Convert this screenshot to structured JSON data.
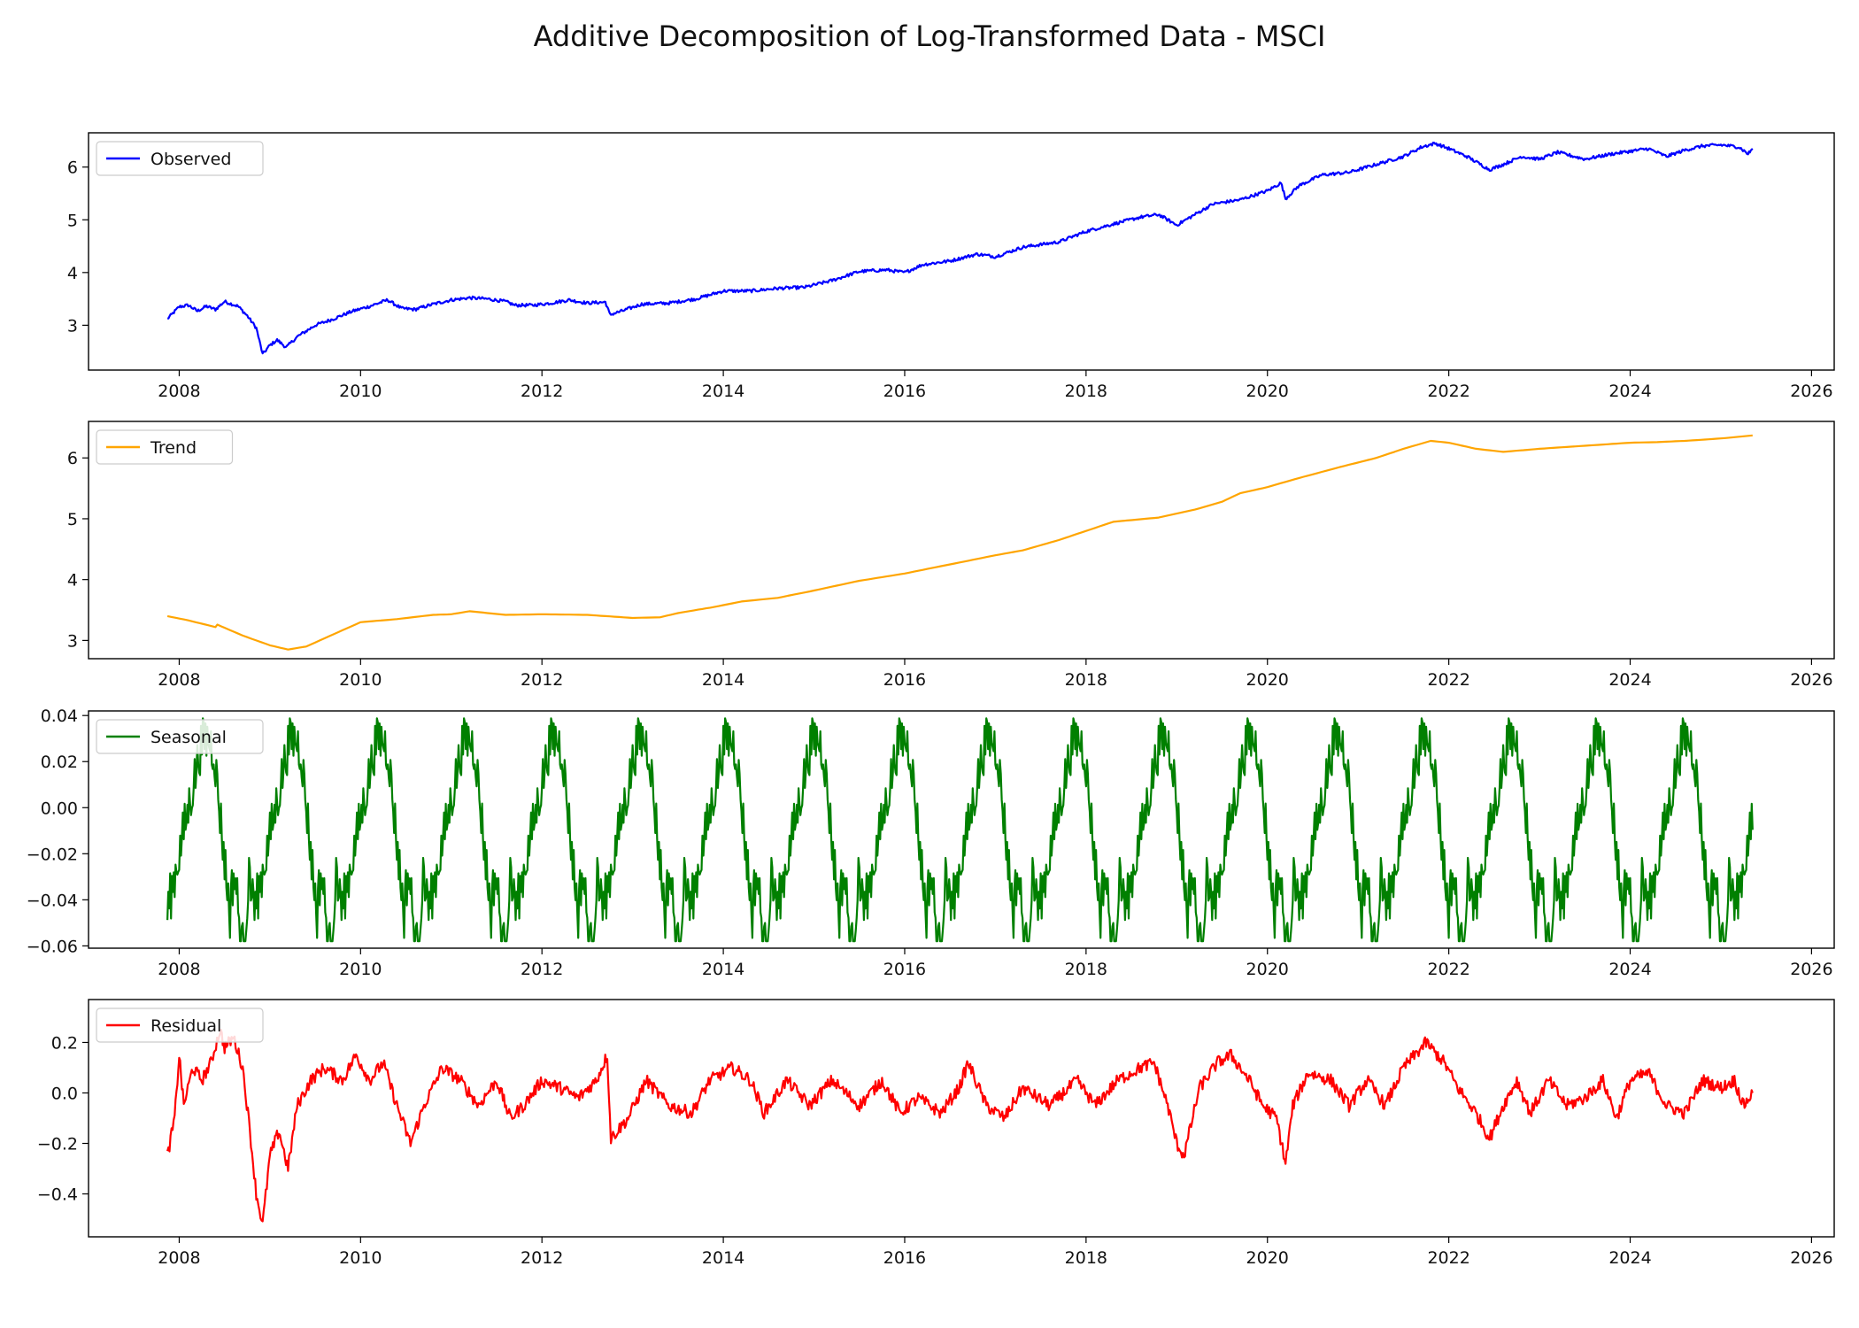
{
  "figure": {
    "title": "Additive Decomposition of Log-Transformed Data - MSCI"
  },
  "chart_data": [
    {
      "type": "line",
      "series": [
        {
          "name": "Observed",
          "color": "#0000ff"
        }
      ],
      "xlim": [
        2007.0,
        2026.25
      ],
      "ylim": [
        2.15,
        6.65
      ],
      "xticks": [
        2008,
        2010,
        2012,
        2014,
        2016,
        2018,
        2020,
        2022,
        2024,
        2026
      ],
      "xtick_labels": [
        "2008",
        "2010",
        "2012",
        "2014",
        "2016",
        "2018",
        "2020",
        "2022",
        "2024",
        "2026"
      ],
      "yticks": [
        3,
        4,
        5,
        6
      ],
      "ytick_labels": [
        "3",
        "4",
        "5",
        "6"
      ],
      "legend_position": "upper-left",
      "points": [
        [
          2007.87,
          3.12
        ],
        [
          2008.0,
          3.35
        ],
        [
          2008.1,
          3.38
        ],
        [
          2008.2,
          3.27
        ],
        [
          2008.3,
          3.36
        ],
        [
          2008.4,
          3.3
        ],
        [
          2008.5,
          3.45
        ],
        [
          2008.65,
          3.36
        ],
        [
          2008.75,
          3.18
        ],
        [
          2008.85,
          2.95
        ],
        [
          2008.92,
          2.45
        ],
        [
          2009.0,
          2.62
        ],
        [
          2009.08,
          2.72
        ],
        [
          2009.18,
          2.58
        ],
        [
          2009.3,
          2.78
        ],
        [
          2009.5,
          3.0
        ],
        [
          2009.7,
          3.12
        ],
        [
          2009.9,
          3.26
        ],
        [
          2010.1,
          3.36
        ],
        [
          2010.3,
          3.48
        ],
        [
          2010.45,
          3.32
        ],
        [
          2010.6,
          3.3
        ],
        [
          2010.8,
          3.4
        ],
        [
          2011.0,
          3.48
        ],
        [
          2011.2,
          3.52
        ],
        [
          2011.4,
          3.5
        ],
        [
          2011.6,
          3.45
        ],
        [
          2011.7,
          3.38
        ],
        [
          2011.9,
          3.38
        ],
        [
          2012.1,
          3.42
        ],
        [
          2012.3,
          3.48
        ],
        [
          2012.5,
          3.42
        ],
        [
          2012.7,
          3.44
        ],
        [
          2012.75,
          3.2
        ],
        [
          2012.9,
          3.28
        ],
        [
          2013.1,
          3.4
        ],
        [
          2013.4,
          3.42
        ],
        [
          2013.7,
          3.5
        ],
        [
          2014.0,
          3.65
        ],
        [
          2014.3,
          3.65
        ],
        [
          2014.6,
          3.7
        ],
        [
          2014.9,
          3.72
        ],
        [
          2015.2,
          3.85
        ],
        [
          2015.5,
          4.02
        ],
        [
          2015.8,
          4.05
        ],
        [
          2016.0,
          4.0
        ],
        [
          2016.2,
          4.15
        ],
        [
          2016.5,
          4.22
        ],
        [
          2016.8,
          4.35
        ],
        [
          2017.0,
          4.3
        ],
        [
          2017.3,
          4.48
        ],
        [
          2017.7,
          4.58
        ],
        [
          2018.0,
          4.78
        ],
        [
          2018.3,
          4.92
        ],
        [
          2018.6,
          5.05
        ],
        [
          2018.8,
          5.1
        ],
        [
          2019.0,
          4.9
        ],
        [
          2019.2,
          5.1
        ],
        [
          2019.4,
          5.3
        ],
        [
          2019.7,
          5.38
        ],
        [
          2020.0,
          5.55
        ],
        [
          2020.15,
          5.7
        ],
        [
          2020.2,
          5.4
        ],
        [
          2020.35,
          5.65
        ],
        [
          2020.6,
          5.85
        ],
        [
          2020.9,
          5.9
        ],
        [
          2021.2,
          6.05
        ],
        [
          2021.5,
          6.2
        ],
        [
          2021.7,
          6.38
        ],
        [
          2021.85,
          6.45
        ],
        [
          2022.0,
          6.35
        ],
        [
          2022.2,
          6.2
        ],
        [
          2022.45,
          5.95
        ],
        [
          2022.6,
          6.05
        ],
        [
          2022.8,
          6.2
        ],
        [
          2023.0,
          6.15
        ],
        [
          2023.2,
          6.28
        ],
        [
          2023.5,
          6.15
        ],
        [
          2023.8,
          6.25
        ],
        [
          2024.0,
          6.3
        ],
        [
          2024.2,
          6.35
        ],
        [
          2024.4,
          6.2
        ],
        [
          2024.6,
          6.32
        ],
        [
          2024.8,
          6.4
        ],
        [
          2025.0,
          6.42
        ],
        [
          2025.2,
          6.38
        ],
        [
          2025.3,
          6.25
        ],
        [
          2025.35,
          6.35
        ]
      ]
    },
    {
      "type": "line",
      "series": [
        {
          "name": "Trend",
          "color": "#ffa500"
        }
      ],
      "xlim": [
        2007.0,
        2026.25
      ],
      "ylim": [
        2.7,
        6.6
      ],
      "xticks": [
        2008,
        2010,
        2012,
        2014,
        2016,
        2018,
        2020,
        2022,
        2024,
        2026
      ],
      "xtick_labels": [
        "2008",
        "2010",
        "2012",
        "2014",
        "2016",
        "2018",
        "2020",
        "2022",
        "2024",
        "2026"
      ],
      "yticks": [
        3,
        4,
        5,
        6
      ],
      "ytick_labels": [
        "3",
        "4",
        "5",
        "6"
      ],
      "legend_position": "upper-left",
      "points": [
        [
          2007.87,
          3.4
        ],
        [
          2008.1,
          3.33
        ],
        [
          2008.4,
          3.22
        ],
        [
          2008.42,
          3.26
        ],
        [
          2008.7,
          3.08
        ],
        [
          2009.0,
          2.92
        ],
        [
          2009.2,
          2.85
        ],
        [
          2009.4,
          2.9
        ],
        [
          2009.7,
          3.1
        ],
        [
          2010.0,
          3.3
        ],
        [
          2010.4,
          3.35
        ],
        [
          2010.8,
          3.42
        ],
        [
          2011.0,
          3.43
        ],
        [
          2011.2,
          3.48
        ],
        [
          2011.6,
          3.42
        ],
        [
          2012.0,
          3.43
        ],
        [
          2012.5,
          3.42
        ],
        [
          2013.0,
          3.37
        ],
        [
          2013.3,
          3.38
        ],
        [
          2013.5,
          3.45
        ],
        [
          2013.9,
          3.55
        ],
        [
          2014.2,
          3.64
        ],
        [
          2014.6,
          3.7
        ],
        [
          2015.0,
          3.82
        ],
        [
          2015.5,
          3.98
        ],
        [
          2016.0,
          4.1
        ],
        [
          2016.5,
          4.25
        ],
        [
          2017.0,
          4.4
        ],
        [
          2017.3,
          4.48
        ],
        [
          2017.7,
          4.65
        ],
        [
          2018.0,
          4.8
        ],
        [
          2018.3,
          4.95
        ],
        [
          2018.8,
          5.02
        ],
        [
          2019.2,
          5.15
        ],
        [
          2019.5,
          5.28
        ],
        [
          2019.7,
          5.42
        ],
        [
          2020.0,
          5.52
        ],
        [
          2020.3,
          5.65
        ],
        [
          2020.8,
          5.85
        ],
        [
          2021.2,
          6.0
        ],
        [
          2021.5,
          6.15
        ],
        [
          2021.8,
          6.28
        ],
        [
          2022.0,
          6.25
        ],
        [
          2022.3,
          6.15
        ],
        [
          2022.6,
          6.1
        ],
        [
          2023.0,
          6.15
        ],
        [
          2023.5,
          6.2
        ],
        [
          2024.0,
          6.25
        ],
        [
          2024.3,
          6.26
        ],
        [
          2024.6,
          6.28
        ],
        [
          2025.0,
          6.32
        ],
        [
          2025.35,
          6.37
        ]
      ]
    },
    {
      "type": "line",
      "series": [
        {
          "name": "Seasonal",
          "color": "#008000"
        }
      ],
      "xlim": [
        2007.0,
        2026.25
      ],
      "ylim": [
        -0.061,
        0.042
      ],
      "xticks": [
        2008,
        2010,
        2012,
        2014,
        2016,
        2018,
        2020,
        2022,
        2024,
        2026
      ],
      "xtick_labels": [
        "2008",
        "2010",
        "2012",
        "2014",
        "2016",
        "2018",
        "2020",
        "2022",
        "2024",
        "2026"
      ],
      "yticks": [
        -0.06,
        -0.04,
        -0.02,
        0.0,
        0.02,
        0.04
      ],
      "ytick_labels": [
        "−0.06",
        "−0.04",
        "−0.02",
        "0.00",
        "0.02",
        "0.04"
      ],
      "legend_position": "upper-left",
      "period_years": 0.96,
      "range": [
        -0.058,
        0.04
      ],
      "start": 2007.87,
      "end": 2025.35
    },
    {
      "type": "line",
      "series": [
        {
          "name": "Residual",
          "color": "#ff0000"
        }
      ],
      "xlim": [
        2007.0,
        2026.25
      ],
      "ylim": [
        -0.57,
        0.37
      ],
      "xticks": [
        2008,
        2010,
        2012,
        2014,
        2016,
        2018,
        2020,
        2022,
        2024,
        2026
      ],
      "xtick_labels": [
        "2008",
        "2010",
        "2012",
        "2014",
        "2016",
        "2018",
        "2020",
        "2022",
        "2024",
        "2026"
      ],
      "yticks": [
        -0.4,
        -0.2,
        0.0,
        0.2
      ],
      "ytick_labels": [
        "−0.4",
        "−0.2",
        "0.0",
        "0.2"
      ],
      "legend_position": "upper-left",
      "points": [
        [
          2007.87,
          -0.25
        ],
        [
          2007.95,
          -0.1
        ],
        [
          2008.0,
          0.15
        ],
        [
          2008.05,
          -0.05
        ],
        [
          2008.15,
          0.1
        ],
        [
          2008.25,
          0.05
        ],
        [
          2008.35,
          0.12
        ],
        [
          2008.45,
          0.25
        ],
        [
          2008.5,
          0.18
        ],
        [
          2008.6,
          0.22
        ],
        [
          2008.7,
          0.1
        ],
        [
          2008.78,
          -0.15
        ],
        [
          2008.85,
          -0.4
        ],
        [
          2008.92,
          -0.52
        ],
        [
          2009.0,
          -0.25
        ],
        [
          2009.1,
          -0.15
        ],
        [
          2009.2,
          -0.3
        ],
        [
          2009.3,
          -0.05
        ],
        [
          2009.45,
          0.05
        ],
        [
          2009.6,
          0.1
        ],
        [
          2009.8,
          0.05
        ],
        [
          2009.95,
          0.15
        ],
        [
          2010.1,
          0.05
        ],
        [
          2010.25,
          0.12
        ],
        [
          2010.4,
          -0.05
        ],
        [
          2010.55,
          -0.2
        ],
        [
          2010.7,
          -0.05
        ],
        [
          2010.9,
          0.1
        ],
        [
          2011.1,
          0.05
        ],
        [
          2011.3,
          -0.05
        ],
        [
          2011.5,
          0.05
        ],
        [
          2011.65,
          -0.1
        ],
        [
          2011.8,
          -0.05
        ],
        [
          2012.0,
          0.05
        ],
        [
          2012.2,
          0.02
        ],
        [
          2012.4,
          -0.02
        ],
        [
          2012.6,
          0.05
        ],
        [
          2012.72,
          0.15
        ],
        [
          2012.76,
          -0.18
        ],
        [
          2012.95,
          -0.1
        ],
        [
          2013.15,
          0.05
        ],
        [
          2013.4,
          -0.05
        ],
        [
          2013.65,
          -0.08
        ],
        [
          2013.85,
          0.05
        ],
        [
          2014.1,
          0.1
        ],
        [
          2014.3,
          0.05
        ],
        [
          2014.45,
          -0.08
        ],
        [
          2014.7,
          0.05
        ],
        [
          2014.95,
          -0.05
        ],
        [
          2015.2,
          0.05
        ],
        [
          2015.5,
          -0.05
        ],
        [
          2015.75,
          0.05
        ],
        [
          2015.95,
          -0.08
        ],
        [
          2016.15,
          -0.02
        ],
        [
          2016.4,
          -0.08
        ],
        [
          2016.6,
          0.02
        ],
        [
          2016.7,
          0.12
        ],
        [
          2016.9,
          -0.05
        ],
        [
          2017.1,
          -0.1
        ],
        [
          2017.3,
          0.02
        ],
        [
          2017.6,
          -0.05
        ],
        [
          2017.9,
          0.05
        ],
        [
          2018.1,
          -0.05
        ],
        [
          2018.35,
          0.05
        ],
        [
          2018.6,
          0.1
        ],
        [
          2018.75,
          0.12
        ],
        [
          2018.9,
          -0.05
        ],
        [
          2019.0,
          -0.2
        ],
        [
          2019.08,
          -0.25
        ],
        [
          2019.25,
          0.02
        ],
        [
          2019.45,
          0.12
        ],
        [
          2019.6,
          0.15
        ],
        [
          2019.8,
          0.05
        ],
        [
          2019.95,
          -0.05
        ],
        [
          2020.1,
          -0.1
        ],
        [
          2020.2,
          -0.28
        ],
        [
          2020.28,
          -0.05
        ],
        [
          2020.45,
          0.08
        ],
        [
          2020.7,
          0.05
        ],
        [
          2020.9,
          -0.05
        ],
        [
          2021.1,
          0.05
        ],
        [
          2021.3,
          -0.05
        ],
        [
          2021.5,
          0.1
        ],
        [
          2021.75,
          0.2
        ],
        [
          2021.95,
          0.12
        ],
        [
          2022.1,
          0.02
        ],
        [
          2022.3,
          -0.08
        ],
        [
          2022.45,
          -0.18
        ],
        [
          2022.6,
          -0.05
        ],
        [
          2022.75,
          0.05
        ],
        [
          2022.9,
          -0.08
        ],
        [
          2023.1,
          0.05
        ],
        [
          2023.3,
          -0.05
        ],
        [
          2023.5,
          -0.02
        ],
        [
          2023.7,
          0.05
        ],
        [
          2023.85,
          -0.1
        ],
        [
          2024.0,
          0.05
        ],
        [
          2024.2,
          0.08
        ],
        [
          2024.4,
          -0.05
        ],
        [
          2024.6,
          -0.08
        ],
        [
          2024.8,
          0.05
        ],
        [
          2025.0,
          0.02
        ],
        [
          2025.15,
          0.05
        ],
        [
          2025.25,
          -0.05
        ],
        [
          2025.35,
          0.0
        ]
      ]
    }
  ]
}
